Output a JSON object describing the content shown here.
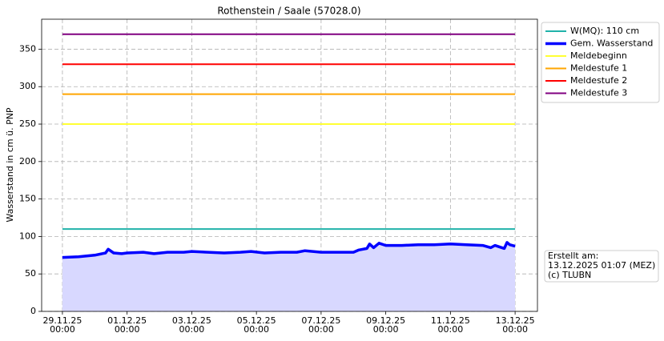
{
  "chart_data": {
    "type": "line",
    "title": "Rothenstein / Saale (57028.0)",
    "y_label": "Wasserstand in cm ü. PNP",
    "xlim": [
      "2025-11-28T08:35",
      "2025-12-13T16:35"
    ],
    "xticks": [
      {
        "value": "2025-11-29T00:00",
        "label": [
          "29.11.25",
          "00:00"
        ]
      },
      {
        "value": "2025-12-01T00:00",
        "label": [
          "01.12.25",
          "00:00"
        ]
      },
      {
        "value": "2025-12-03T00:00",
        "label": [
          "03.12.25",
          "00:00"
        ]
      },
      {
        "value": "2025-12-05T00:00",
        "label": [
          "05.12.25",
          "00:00"
        ]
      },
      {
        "value": "2025-12-07T00:00",
        "label": [
          "07.12.25",
          "00:00"
        ]
      },
      {
        "value": "2025-12-09T00:00",
        "label": [
          "09.12.25",
          "00:00"
        ]
      },
      {
        "value": "2025-12-11T00:00",
        "label": [
          "11.12.25",
          "00:00"
        ]
      },
      {
        "value": "2025-12-13T00:00",
        "label": [
          "13.12.25",
          "00:00"
        ]
      }
    ],
    "ylim": [
      0,
      390
    ],
    "yticks": [
      0,
      50,
      100,
      150,
      200,
      250,
      300,
      350
    ],
    "grid": true,
    "legend": "outside-upper-right",
    "series": [
      {
        "name": "W(MQ): 110 cm",
        "color": "#20b2aa",
        "width": 2,
        "x": [
          "2025-11-29T00:00",
          "2025-12-13T00:00"
        ],
        "values": [
          110,
          110
        ]
      },
      {
        "name": "Gem. Wasserstand",
        "color": "#0000ff",
        "width": 3.5,
        "fill": "#d8d8ff",
        "x": [
          "2025-11-29T00:00",
          "2025-11-29T12:00",
          "2025-11-30T00:00",
          "2025-11-30T08:00",
          "2025-11-30T10:00",
          "2025-11-30T14:00",
          "2025-11-30T20:00",
          "2025-12-01T00:00",
          "2025-12-01T12:00",
          "2025-12-01T20:00",
          "2025-12-02T06:00",
          "2025-12-02T18:00",
          "2025-12-03T00:00",
          "2025-12-03T12:00",
          "2025-12-04T00:00",
          "2025-12-04T12:00",
          "2025-12-04T20:00",
          "2025-12-05T06:00",
          "2025-12-05T18:00",
          "2025-12-06T06:00",
          "2025-12-06T12:00",
          "2025-12-07T00:00",
          "2025-12-07T12:00",
          "2025-12-08T00:00",
          "2025-12-08T04:00",
          "2025-12-08T10:00",
          "2025-12-08T12:00",
          "2025-12-08T15:00",
          "2025-12-08T19:00",
          "2025-12-09T00:00",
          "2025-12-09T12:00",
          "2025-12-10T00:00",
          "2025-12-10T12:00",
          "2025-12-11T00:00",
          "2025-12-11T12:00",
          "2025-12-12T00:00",
          "2025-12-12T06:00",
          "2025-12-12T09:00",
          "2025-12-12T16:00",
          "2025-12-12T18:00",
          "2025-12-12T20:00",
          "2025-12-13T00:00"
        ],
        "values": [
          72,
          73,
          75,
          78,
          83,
          78,
          77,
          78,
          79,
          77,
          79,
          79,
          80,
          79,
          78,
          79,
          80,
          78,
          79,
          79,
          81,
          79,
          79,
          79,
          82,
          84,
          90,
          85,
          91,
          88,
          88,
          89,
          89,
          90,
          89,
          88,
          85,
          88,
          84,
          92,
          89,
          87
        ]
      },
      {
        "name": "Meldebeginn",
        "color": "#ffff33",
        "width": 2,
        "x": [
          "2025-11-29T00:00",
          "2025-12-13T00:00"
        ],
        "values": [
          250,
          250
        ]
      },
      {
        "name": "Meldestufe 1",
        "color": "#ffa500",
        "width": 2,
        "x": [
          "2025-11-29T00:00",
          "2025-12-13T00:00"
        ],
        "values": [
          290,
          290
        ]
      },
      {
        "name": "Meldestufe 2",
        "color": "#ff0000",
        "width": 2,
        "x": [
          "2025-11-29T00:00",
          "2025-12-13T00:00"
        ],
        "values": [
          330,
          330
        ]
      },
      {
        "name": "Meldestufe 3",
        "color": "#800080",
        "width": 2,
        "x": [
          "2025-11-29T00:00",
          "2025-12-13T00:00"
        ],
        "values": [
          370,
          370
        ]
      }
    ],
    "annotation": [
      "Erstellt am:",
      "13.12.2025 01:07 (MEZ)",
      "(c) TLUBN"
    ]
  }
}
